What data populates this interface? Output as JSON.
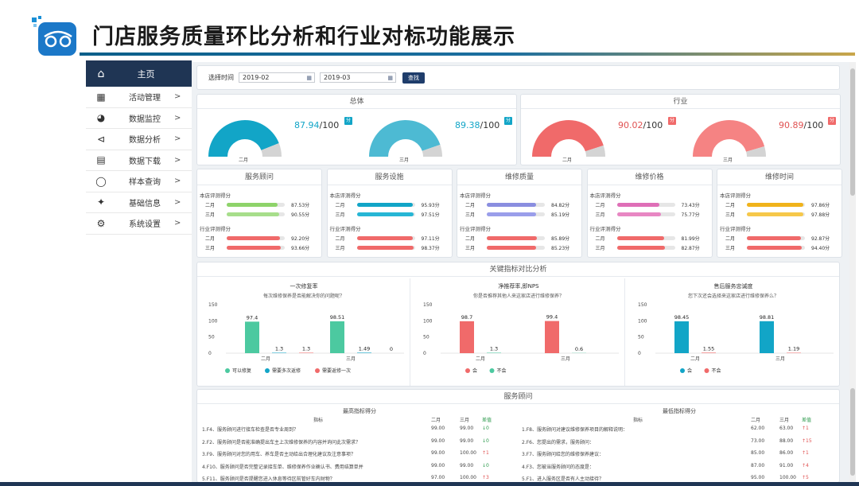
{
  "page": {
    "title": "门店服务质量环比分析和行业对标功能展示"
  },
  "sidebar": {
    "home": {
      "label": "主页",
      "icon": "home-icon"
    },
    "items": [
      {
        "label": "活动管理",
        "icon": "map-icon"
      },
      {
        "label": "数据监控",
        "icon": "dashboard-icon"
      },
      {
        "label": "数据分析",
        "icon": "share-icon"
      },
      {
        "label": "数据下载",
        "icon": "server-icon"
      },
      {
        "label": "样本查询",
        "icon": "chat-search-icon"
      },
      {
        "label": "基础信息",
        "icon": "leaf-icon"
      },
      {
        "label": "系统设置",
        "icon": "gear-icon"
      }
    ]
  },
  "filter": {
    "label": "选择时间",
    "start": "2019-02",
    "end": "2019-03",
    "search": "查找"
  },
  "overall": {
    "title": "总体",
    "gauges": [
      {
        "value": "87.94",
        "suffix": "/100",
        "badge": "分",
        "label": "二月",
        "pct": 0.8794
      },
      {
        "value": "89.38",
        "suffix": "/100",
        "badge": "分",
        "label": "三月",
        "pct": 0.8938
      }
    ]
  },
  "industry": {
    "title": "行业",
    "gauges": [
      {
        "value": "90.02",
        "suffix": "/100",
        "badge": "分",
        "label": "二月",
        "pct": 0.9002
      },
      {
        "value": "90.89",
        "suffix": "/100",
        "badge": "分",
        "label": "三月",
        "pct": 0.9089
      }
    ]
  },
  "metrics": {
    "store_label": "本店评测得分",
    "industry_label": "行业评测得分",
    "feb": "二月",
    "mar": "三月",
    "cards": [
      {
        "title": "服务顾问",
        "store": [
          "87.53分",
          "90.55分"
        ],
        "ind": [
          "92.20分",
          "93.66分"
        ],
        "sv": [
          87.53,
          90.55
        ],
        "iv": [
          92.2,
          93.66
        ]
      },
      {
        "title": "服务设施",
        "store": [
          "95.93分",
          "97.51分"
        ],
        "ind": [
          "97.11分",
          "98.37分"
        ],
        "sv": [
          95.93,
          97.51
        ],
        "iv": [
          97.11,
          98.37
        ]
      },
      {
        "title": "维修质量",
        "store": [
          "84.82分",
          "85.19分"
        ],
        "ind": [
          "85.89分",
          "85.23分"
        ],
        "sv": [
          84.82,
          85.19
        ],
        "iv": [
          85.89,
          85.23
        ]
      },
      {
        "title": "维修价格",
        "store": [
          "73.43分",
          "75.77分"
        ],
        "ind": [
          "81.99分",
          "82.87分"
        ],
        "sv": [
          73.43,
          75.77
        ],
        "iv": [
          81.99,
          82.87
        ]
      },
      {
        "title": "维修时间",
        "store": [
          "97.86分",
          "97.88分"
        ],
        "ind": [
          "92.87分",
          "94.40分"
        ],
        "sv": [
          97.86,
          97.88
        ],
        "iv": [
          92.87,
          94.4
        ]
      }
    ]
  },
  "kpi": {
    "title": "关键指标对比分析"
  },
  "chart_data": [
    {
      "type": "bar",
      "title": "一次修复率",
      "subtitle": "每次维修保养是否能解决你的问题呢？",
      "categories": [
        "二月",
        "三月"
      ],
      "ylim": [
        0,
        150
      ],
      "yticks": [
        "150",
        "100",
        "50",
        "0"
      ],
      "series": [
        {
          "name": "可以修复",
          "color": "#4cc9a0",
          "values": [
            97.4,
            98.51
          ]
        },
        {
          "name": "需要多次返修",
          "color": "#12a5c7",
          "values": [
            1.3,
            1.49
          ]
        },
        {
          "name": "需要返修一次",
          "color": "#f06a6a",
          "values": [
            1.3,
            0
          ]
        }
      ],
      "labels": [
        [
          "97.4",
          "1.3",
          "1.3"
        ],
        [
          "98.51",
          "1.49",
          "0"
        ]
      ]
    },
    {
      "type": "bar",
      "title": "净推荐率,即NPS",
      "subtitle": "你是否推荐其他人来这家店进行维修保养？",
      "categories": [
        "二月",
        "三月"
      ],
      "ylim": [
        0,
        150
      ],
      "yticks": [
        "150",
        "100",
        "50",
        "0"
      ],
      "series": [
        {
          "name": "会",
          "color": "#f06a6a",
          "values": [
            98.7,
            99.4
          ]
        },
        {
          "name": "不会",
          "color": "#4cc9a0",
          "values": [
            1.3,
            0.6
          ]
        }
      ],
      "labels": [
        [
          "98.7",
          "1.3"
        ],
        [
          "99.4",
          "0.6"
        ]
      ]
    },
    {
      "type": "bar",
      "title": "售后服务忠诚度",
      "subtitle": "您下次还会选择来这家店进行维修保养么？",
      "categories": [
        "二月",
        "三月"
      ],
      "ylim": [
        0,
        150
      ],
      "yticks": [
        "150",
        "100",
        "50",
        "0"
      ],
      "series": [
        {
          "name": "会",
          "color": "#12a5c7",
          "values": [
            98.45,
            98.81
          ]
        },
        {
          "name": "不会",
          "color": "#f06a6a",
          "values": [
            1.55,
            1.19
          ]
        }
      ],
      "labels": [
        [
          "98.45",
          "1.55"
        ],
        [
          "98.81",
          "1.19"
        ]
      ]
    }
  ],
  "advisor": {
    "title": "服务顾问",
    "high": {
      "title": "最高指标得分",
      "headers": [
        "指标",
        "二月",
        "三月",
        "差值"
      ],
      "rows": [
        [
          "1.F4、服务顾问进行接车检查是否专业周到？",
          "99.00",
          "99.00",
          "↓0"
        ],
        [
          "2.F2、服务顾问是否能准确提出车主上次维修保养的内容并询问此次需求？",
          "99.00",
          "99.00",
          "↓0"
        ],
        [
          "3.F9、服务顾问对您的用车、养车是否主动给出合理化建议及注意事项？",
          "99.00",
          "100.00",
          "↑1"
        ],
        [
          "4.F10、服务顾问是否完整记录接车单、维修保养作业确认书、费用结算单并",
          "99.00",
          "99.00",
          "↓0"
        ],
        [
          "5.F11、服务顾问是否提醒您进入休息等待区前管好车内财物？",
          "97.00",
          "100.00",
          "↑3"
        ]
      ]
    },
    "low": {
      "title": "最低指标得分",
      "headers": [
        "指标",
        "二月",
        "三月",
        "差值"
      ],
      "rows": [
        [
          "1.F8、服务顾问对建议维修保养项目的解释说明：",
          "62.00",
          "63.00",
          "↑1"
        ],
        [
          "2.F6、您提出的需求，服务顾问：",
          "73.00",
          "88.00",
          "↑15"
        ],
        [
          "3.F7、服务顾问给您的维修保养建议：",
          "85.00",
          "86.00",
          "↑1"
        ],
        [
          "4.F3、您被当服务顾问的态度是：",
          "87.00",
          "91.00",
          "↑4"
        ],
        [
          "5.F1、进入服务区是否有人主动接待？",
          "95.00",
          "100.00",
          "↑5"
        ]
      ]
    }
  }
}
